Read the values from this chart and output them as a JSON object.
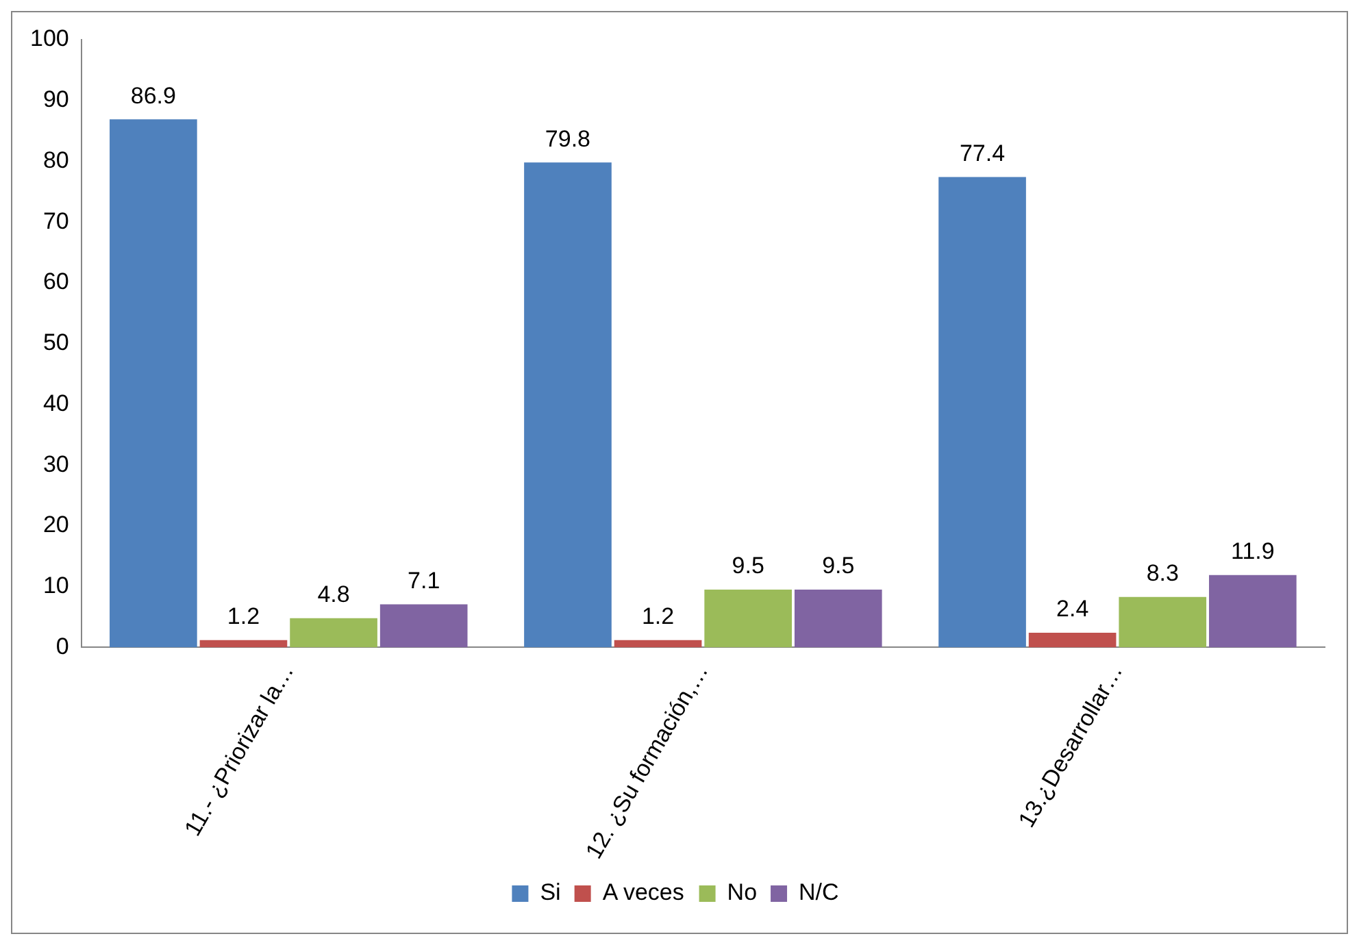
{
  "chart_data": {
    "type": "bar",
    "categories": [
      "11.- ¿Priorizar la…",
      "12. ¿Su formación,…",
      "13.¿Desarrollar…"
    ],
    "series": [
      {
        "name": "Si",
        "color": "#4f81bd",
        "values": [
          86.9,
          79.8,
          77.4
        ]
      },
      {
        "name": "A veces",
        "color": "#c0504d",
        "values": [
          1.2,
          1.2,
          2.4
        ]
      },
      {
        "name": "No",
        "color": "#9bbb59",
        "values": [
          4.8,
          9.5,
          8.3
        ]
      },
      {
        "name": "N/C",
        "color": "#8064a2",
        "values": [
          7.1,
          9.5,
          11.9
        ]
      }
    ],
    "ylim": [
      0,
      100
    ],
    "yticks": [
      0,
      10,
      20,
      30,
      40,
      50,
      60,
      70,
      80,
      90,
      100
    ],
    "data_labels": true,
    "grid": false,
    "legend": "bottom"
  }
}
